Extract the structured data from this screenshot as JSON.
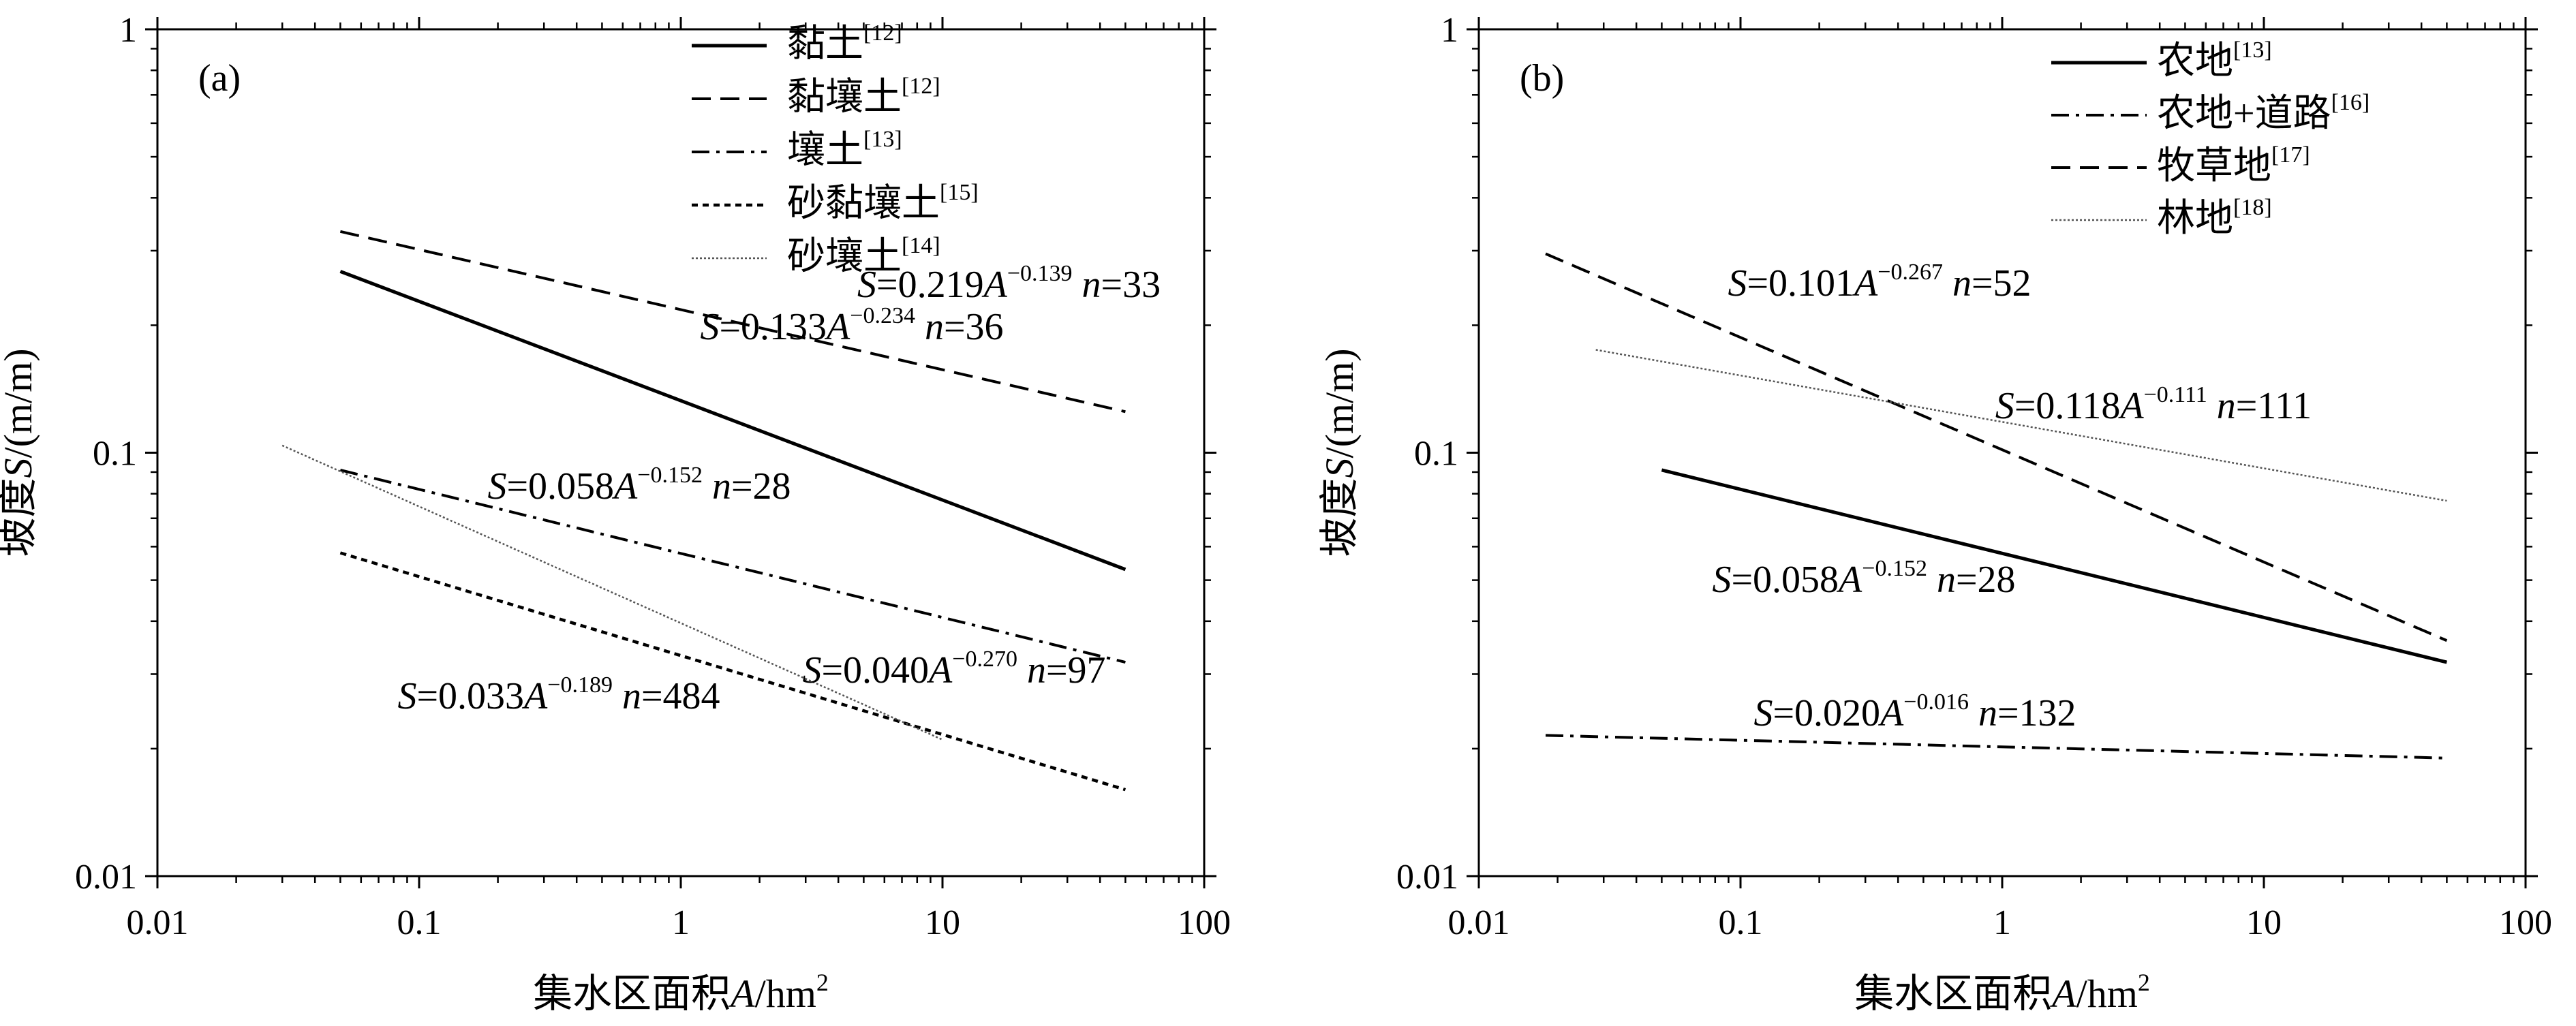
{
  "chart_data": [
    {
      "panel_label": "(a)",
      "type": "line",
      "xscale": "log",
      "yscale": "log",
      "xlim": [
        0.01,
        100
      ],
      "ylim": [
        0.01,
        1
      ],
      "x_ticks": [
        "0.01",
        "0.1",
        "1",
        "10",
        "100"
      ],
      "y_ticks": [
        "0.01",
        "0.1",
        "1"
      ],
      "xlabel": {
        "prefix": "集水区面积",
        "var": "A",
        "unit": "/hm",
        "sup": "2"
      },
      "ylabel": {
        "prefix": "坡度",
        "var": "S",
        "unit": "/(m/m)"
      },
      "legend_position": "top",
      "series": [
        {
          "name": "黏土",
          "ref": "[12]",
          "style": "solid",
          "x": [
            0.05,
            50
          ],
          "y": [
            0.268,
            0.053
          ],
          "equation": {
            "coef": "0.133",
            "exp": "−0.234",
            "n": "36"
          }
        },
        {
          "name": "黏壤土",
          "ref": "[12]",
          "style": "dashed",
          "x": [
            0.05,
            50
          ],
          "y": [
            0.333,
            0.125
          ],
          "equation": {
            "coef": "0.219",
            "exp": "−0.139",
            "n": "33"
          }
        },
        {
          "name": "壤土",
          "ref": "[13]",
          "style": "dashdot",
          "x": [
            0.05,
            50
          ],
          "y": [
            0.091,
            0.032
          ],
          "equation": {
            "coef": "0.058",
            "exp": "−0.152",
            "n": "28"
          }
        },
        {
          "name": "砂黏壤土",
          "ref": "[15]",
          "style": "dotted",
          "x": [
            0.05,
            50
          ],
          "y": [
            0.058,
            0.016
          ],
          "equation": {
            "coef": "0.033",
            "exp": "−0.189",
            "n": "484"
          }
        },
        {
          "name": "砂壤土",
          "ref": "[14]",
          "style": "fine-dotted",
          "x": [
            0.03,
            10
          ],
          "y": [
            0.104,
            0.021
          ],
          "equation": {
            "coef": "0.040",
            "exp": "−0.270",
            "n": "97"
          }
        }
      ]
    },
    {
      "panel_label": "(b)",
      "type": "line",
      "xscale": "log",
      "yscale": "log",
      "xlim": [
        0.01,
        100
      ],
      "ylim": [
        0.01,
        1
      ],
      "x_ticks": [
        "0.01",
        "0.1",
        "1",
        "10",
        "100"
      ],
      "y_ticks": [
        "0.01",
        "0.1",
        "1"
      ],
      "xlabel": {
        "prefix": "集水区面积",
        "var": "A",
        "unit": "/hm",
        "sup": "2"
      },
      "ylabel": {
        "prefix": "坡度",
        "var": "S",
        "unit": "/(m/m)"
      },
      "legend_position": "top-right",
      "series": [
        {
          "name": "农地",
          "ref": "[13]",
          "style": "solid",
          "x": [
            0.05,
            50
          ],
          "y": [
            0.091,
            0.032
          ],
          "equation": {
            "coef": "0.058",
            "exp": "−0.152",
            "n": "28"
          }
        },
        {
          "name": "农地+道路",
          "ref": "[16]",
          "style": "dashdot",
          "x": [
            0.018,
            50
          ],
          "y": [
            0.0215,
            0.019
          ],
          "equation": {
            "coef": "0.020",
            "exp": "−0.016",
            "n": "132"
          }
        },
        {
          "name": "牧草地",
          "ref": "[17]",
          "style": "dashed",
          "x": [
            0.018,
            50
          ],
          "y": [
            0.295,
            0.036
          ],
          "equation": {
            "coef": "0.101",
            "exp": "−0.267",
            "n": "52"
          }
        },
        {
          "name": "林地",
          "ref": "[18]",
          "style": "fine-dotted",
          "x": [
            0.028,
            50
          ],
          "y": [
            0.175,
            0.077
          ],
          "equation": {
            "coef": "0.118",
            "exp": "−0.111",
            "n": "111"
          }
        }
      ]
    }
  ]
}
